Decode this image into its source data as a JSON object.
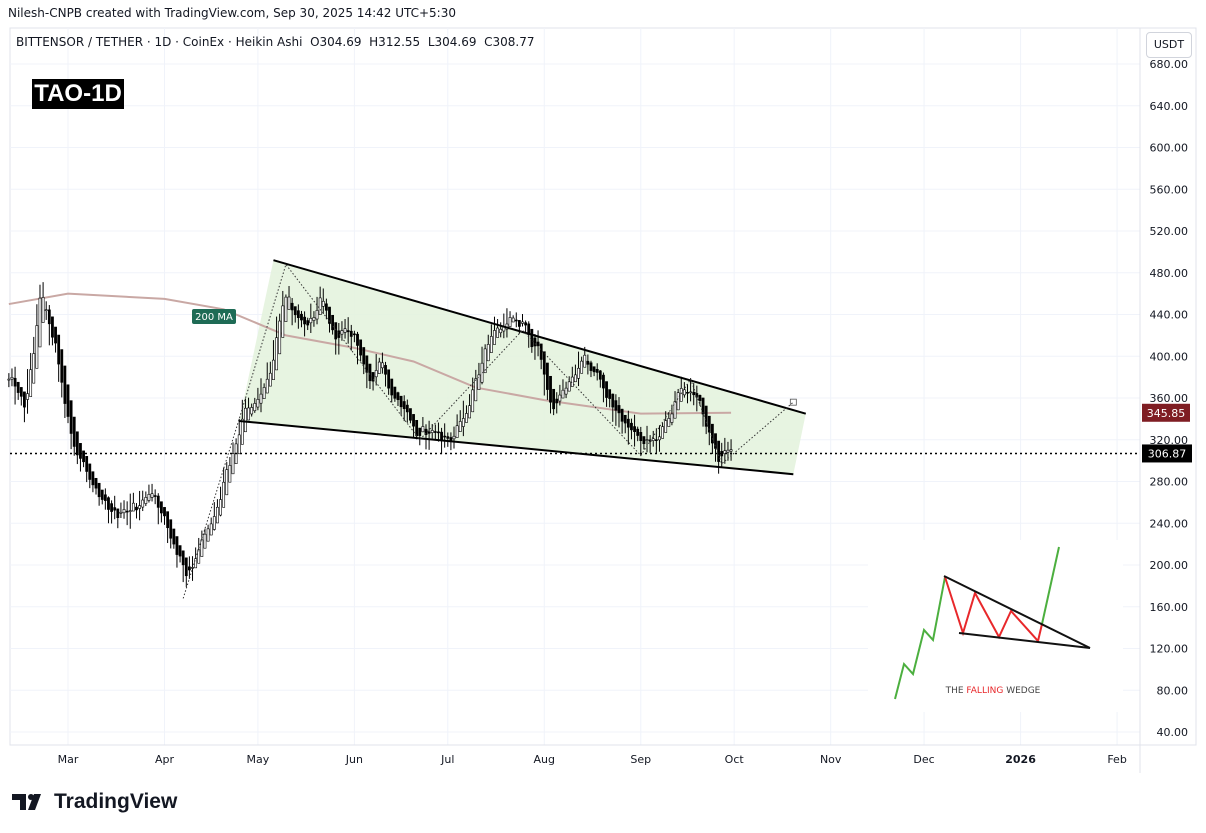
{
  "header": {
    "attribution": "Nilesh-CNPB created with TradingView.com, Sep 30, 2025 14:42 UTC+5:30",
    "symbol_line": "BITTENSOR / TETHER · 1D · CoinEx · Heikin Ashi",
    "ohlc": {
      "open": "O304.69",
      "high": "H312.55",
      "low": "L304.69",
      "close": "C308.77"
    },
    "ticker_tag": "TAO-1D",
    "currency_button": "USDT"
  },
  "brand": {
    "logo_text": "TradingView"
  },
  "colors": {
    "wedge_fill": "#e3f2dc",
    "ma": "#c9a8a4",
    "ma_label_bg": "#1e6b55",
    "ma_badge": "#7f1d23",
    "price_badge": "#000000",
    "up_candle": "#ffffff",
    "down_candle": "#000000"
  },
  "chart_data": {
    "type": "candlestick",
    "candle_style": "Heikin Ashi",
    "ylim": [
      40,
      680
    ],
    "y_ticks": [
      "680.00",
      "640.00",
      "600.00",
      "560.00",
      "520.00",
      "480.00",
      "440.00",
      "400.00",
      "360.00",
      "320.00",
      "280.00",
      "240.00",
      "200.00",
      "160.00",
      "120.00",
      "80.00",
      "40.00"
    ],
    "x_ticks": [
      "Mar",
      "Apr",
      "May",
      "Jun",
      "Jul",
      "Aug",
      "Sep",
      "Oct",
      "Nov",
      "Dec",
      "2026",
      "Feb"
    ],
    "x_tick_dates": [
      "2025-03-01",
      "2025-04-01",
      "2025-05-01",
      "2025-06-01",
      "2025-07-01",
      "2025-08-01",
      "2025-09-01",
      "2025-10-01",
      "2025-11-01",
      "2025-12-01",
      "2026-01-01",
      "2026-02-01"
    ],
    "grid": true,
    "approx_close_path": [
      [
        "2025-02-10",
        378
      ],
      [
        "2025-02-15",
        350
      ],
      [
        "2025-02-20",
        462
      ],
      [
        "2025-02-25",
        400
      ],
      [
        "2025-03-01",
        330
      ],
      [
        "2025-03-05",
        300
      ],
      [
        "2025-03-10",
        262
      ],
      [
        "2025-03-15",
        250
      ],
      [
        "2025-03-22",
        255
      ],
      [
        "2025-03-28",
        272
      ],
      [
        "2025-04-02",
        232
      ],
      [
        "2025-04-08",
        192
      ],
      [
        "2025-04-12",
        218
      ],
      [
        "2025-04-16",
        240
      ],
      [
        "2025-04-22",
        300
      ],
      [
        "2025-04-26",
        342
      ],
      [
        "2025-05-01",
        360
      ],
      [
        "2025-05-05",
        385
      ],
      [
        "2025-05-09",
        462
      ],
      [
        "2025-05-13",
        440
      ],
      [
        "2025-05-17",
        428
      ],
      [
        "2025-05-21",
        452
      ],
      [
        "2025-05-25",
        420
      ],
      [
        "2025-06-01",
        422
      ],
      [
        "2025-06-05",
        372
      ],
      [
        "2025-06-09",
        400
      ],
      [
        "2025-06-13",
        360
      ],
      [
        "2025-06-17",
        350
      ],
      [
        "2025-06-21",
        322
      ],
      [
        "2025-06-25",
        330
      ],
      [
        "2025-07-01",
        320
      ],
      [
        "2025-07-06",
        340
      ],
      [
        "2025-07-10",
        382
      ],
      [
        "2025-07-14",
        420
      ],
      [
        "2025-07-20",
        432
      ],
      [
        "2025-07-25",
        430
      ],
      [
        "2025-07-30",
        402
      ],
      [
        "2025-08-03",
        350
      ],
      [
        "2025-08-08",
        370
      ],
      [
        "2025-08-13",
        396
      ],
      [
        "2025-08-18",
        380
      ],
      [
        "2025-08-23",
        350
      ],
      [
        "2025-08-28",
        330
      ],
      [
        "2025-09-02",
        315
      ],
      [
        "2025-09-07",
        325
      ],
      [
        "2025-09-12",
        360
      ],
      [
        "2025-09-16",
        370
      ],
      [
        "2025-09-20",
        350
      ],
      [
        "2025-09-23",
        320
      ],
      [
        "2025-09-26",
        303
      ],
      [
        "2025-09-30",
        308.77
      ]
    ],
    "ma_200": {
      "label": "200 MA",
      "current": "345.85",
      "path": [
        [
          "2025-02-10",
          450
        ],
        [
          "2025-03-01",
          460
        ],
        [
          "2025-04-01",
          455
        ],
        [
          "2025-04-20",
          445
        ],
        [
          "2025-05-10",
          420
        ],
        [
          "2025-06-01",
          408
        ],
        [
          "2025-06-20",
          395
        ],
        [
          "2025-07-10",
          370
        ],
        [
          "2025-08-01",
          358
        ],
        [
          "2025-09-01",
          345
        ],
        [
          "2025-09-30",
          345.85
        ]
      ]
    },
    "current_price": "306.87",
    "wedge": {
      "upper": [
        [
          "2025-05-06",
          492
        ],
        [
          "2025-10-24",
          345
        ]
      ],
      "lower": [
        [
          "2025-04-25",
          338
        ],
        [
          "2025-10-20",
          287
        ]
      ]
    },
    "projection_path": [
      [
        "2025-04-07",
        168
      ],
      [
        "2025-04-25",
        340
      ],
      [
        "2025-05-10",
        488
      ],
      [
        "2025-06-22",
        320
      ],
      [
        "2025-07-25",
        425
      ],
      [
        "2025-09-01",
        305
      ],
      [
        "2025-09-17",
        378
      ],
      [
        "2025-09-27",
        297
      ],
      [
        "2025-10-20",
        356
      ]
    ],
    "inset": {
      "caption_parts": [
        "THE ",
        "FALLING",
        " WEDGE"
      ]
    }
  }
}
